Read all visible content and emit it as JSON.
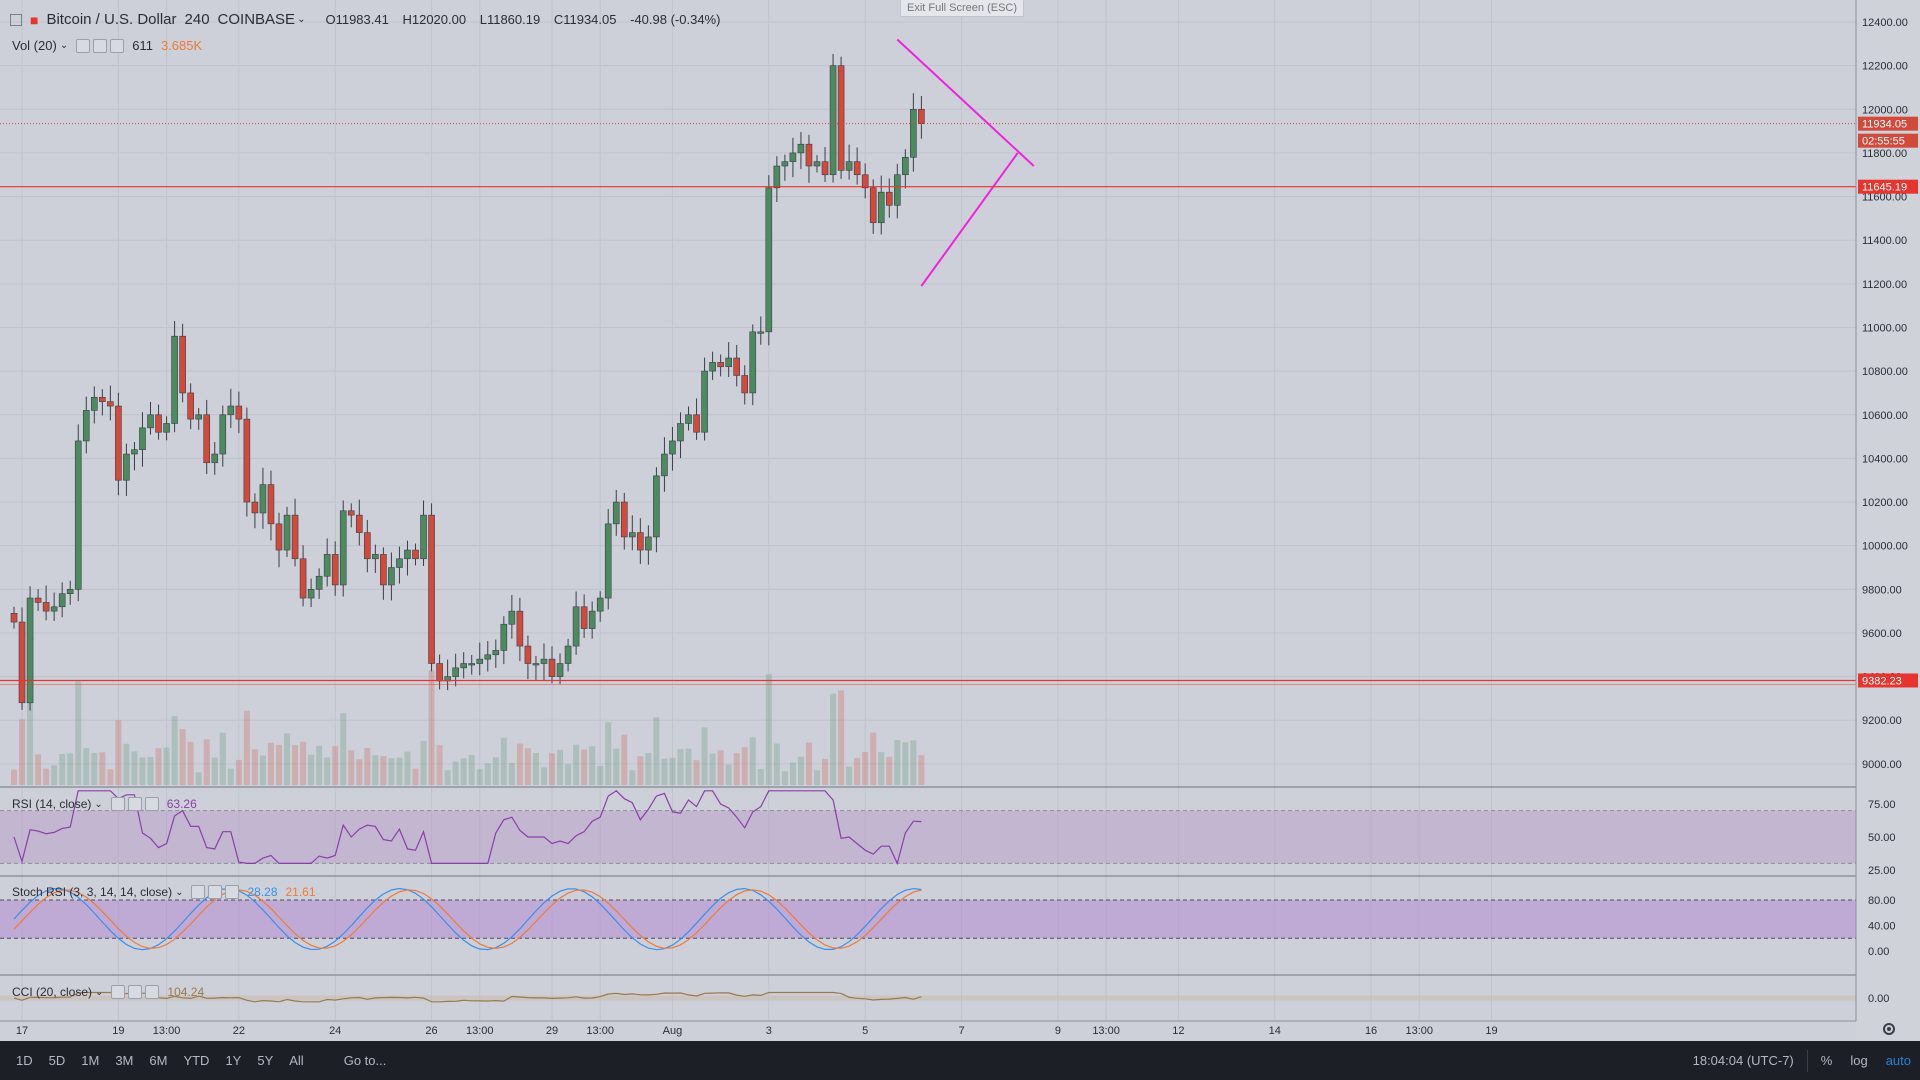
{
  "symbol": {
    "title": "Bitcoin / U.S. Dollar",
    "interval": "240",
    "exchange": "COINBASE",
    "ohlc": {
      "open": "O11983.41",
      "high": "H12020.00",
      "low": "L11860.19",
      "close": "C11934.05",
      "change": "-40.98 (-0.34%)"
    }
  },
  "volume": {
    "label": "Vol (20)",
    "value1": "611",
    "value2": "3.685K"
  },
  "exit_fullscreen": "Exit Full Screen (ESC)",
  "price_tags": {
    "last": "11934.05",
    "countdown": "02:55:55",
    "level_high": "11645.19",
    "level_low": "9382.23"
  },
  "colors": {
    "up": "#4b8b5f",
    "down": "#d14a3c",
    "triangle": "#ee24dc",
    "level": "#e8342e",
    "rsi": "#8c3fa8",
    "stoch_k": "#3b8fe8",
    "stoch_d": "#f07a3a",
    "cci": "#9a7a4a"
  },
  "indicators": {
    "rsi": {
      "label": "RSI (14, close)",
      "value": "63.26",
      "ticks": [
        "75.00",
        "50.00",
        "25.00"
      ]
    },
    "stoch": {
      "label": "Stoch RSI (3, 3, 14, 14, close)",
      "k": "28.28",
      "d": "21.61",
      "ticks": [
        "80.00",
        "40.00",
        "0.00"
      ]
    },
    "cci": {
      "label": "CCI (20, close)",
      "value": "104.24",
      "ticks": [
        "0.00"
      ]
    }
  },
  "time_axis": [
    {
      "label": "17",
      "slot": 1
    },
    {
      "label": "19",
      "slot": 13
    },
    {
      "label": "13:00",
      "slot": 19
    },
    {
      "label": "22",
      "slot": 28
    },
    {
      "label": "24",
      "slot": 40
    },
    {
      "label": "26",
      "slot": 52
    },
    {
      "label": "13:00",
      "slot": 58
    },
    {
      "label": "29",
      "slot": 67
    },
    {
      "label": "13:00",
      "slot": 73
    },
    {
      "label": "Aug",
      "slot": 82
    },
    {
      "label": "3",
      "slot": 94
    },
    {
      "label": "5",
      "slot": 106
    },
    {
      "label": "7",
      "slot": 118
    },
    {
      "label": "9",
      "slot": 130
    },
    {
      "label": "13:00",
      "slot": 136
    },
    {
      "label": "12",
      "slot": 145
    },
    {
      "label": "14",
      "slot": 157
    },
    {
      "label": "16",
      "slot": 169
    },
    {
      "label": "13:00",
      "slot": 175
    },
    {
      "label": "19",
      "slot": 184
    }
  ],
  "price_axis": [
    "12400.00",
    "12200.00",
    "12000.00",
    "11800.00",
    "11600.00",
    "11400.00",
    "11200.00",
    "11000.00",
    "10800.00",
    "10600.00",
    "10400.00",
    "10200.00",
    "10000.00",
    "9800.00",
    "9600.00",
    "9400.00",
    "9200.00",
    "9000.00"
  ],
  "candles_close": [
    9650,
    9280,
    9760,
    9740,
    9700,
    9720,
    9780,
    9800,
    10480,
    10620,
    10680,
    10660,
    10640,
    10300,
    10420,
    10440,
    10540,
    10600,
    10520,
    10560,
    10960,
    10700,
    10580,
    10600,
    10380,
    10420,
    10600,
    10640,
    10580,
    10200,
    10150,
    10280,
    10100,
    9980,
    10140,
    9940,
    9760,
    9800,
    9860,
    9960,
    9820,
    10160,
    10140,
    10060,
    9940,
    9960,
    9820,
    9900,
    9940,
    9980,
    9940,
    10140,
    9460,
    9380,
    9400,
    9440,
    9460,
    9460,
    9480,
    9500,
    9520,
    9640,
    9700,
    9540,
    9460,
    9460,
    9480,
    9400,
    9460,
    9540,
    9720,
    9620,
    9700,
    9760,
    10100,
    10200,
    10040,
    10060,
    9980,
    10040,
    10320,
    10420,
    10480,
    10560,
    10600,
    10520,
    10800,
    10840,
    10820,
    10860,
    10780,
    10700,
    10980,
    10980,
    11640,
    11740,
    11760,
    11800,
    11840,
    11740,
    11760,
    11700,
    12200,
    11720,
    11760,
    11700,
    11640,
    11480,
    11620,
    11560,
    11700,
    11780,
    12000,
    11934
  ],
  "triangle": {
    "upper_start": [
      12320,
      110
    ],
    "upper_end": [
      11740,
      127
    ],
    "lower_start": [
      11190,
      113
    ],
    "lower_end": [
      11800,
      125
    ]
  }
}
